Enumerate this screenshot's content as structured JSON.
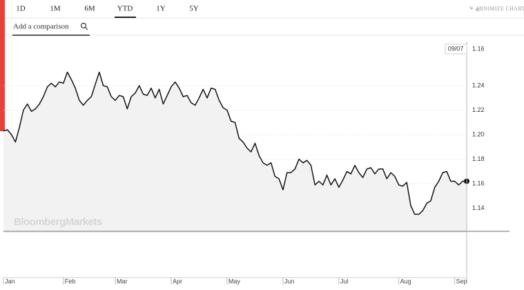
{
  "tabs": [
    "1D",
    "1M",
    "6M",
    "YTD",
    "1Y",
    "5Y"
  ],
  "active_tab": 3,
  "minimize": "MINIMIZE CHART",
  "comparison_placeholder": "Add a comparison",
  "chart_data": {
    "type": "line",
    "watermark": "BloombergMarkets",
    "color": "#111111",
    "crosshair": {
      "date": "09/07",
      "label": "1.16"
    },
    "categories": [
      "Jan",
      null,
      null,
      null,
      null,
      null,
      null,
      null,
      null,
      null,
      null,
      null,
      null,
      null,
      null,
      "Feb",
      null,
      null,
      null,
      null,
      null,
      null,
      null,
      null,
      null,
      null,
      null,
      null,
      "Mar",
      null,
      null,
      null,
      null,
      null,
      null,
      null,
      null,
      null,
      null,
      null,
      null,
      null,
      "Apr",
      null,
      null,
      null,
      null,
      null,
      null,
      null,
      null,
      null,
      null,
      null,
      null,
      null,
      "May",
      null,
      null,
      null,
      null,
      null,
      null,
      null,
      null,
      null,
      null,
      null,
      null,
      null,
      "Jun",
      null,
      null,
      null,
      null,
      null,
      null,
      null,
      null,
      null,
      null,
      null,
      null,
      null,
      "Jul",
      null,
      null,
      null,
      null,
      null,
      null,
      null,
      null,
      null,
      null,
      null,
      null,
      null,
      null,
      "Aug",
      null,
      null,
      null,
      null,
      null,
      null,
      null,
      null,
      null,
      null,
      null,
      null,
      null,
      "Sep",
      null,
      null,
      null
    ],
    "values": [
      1.203,
      1.204,
      1.2,
      1.194,
      1.206,
      1.22,
      1.225,
      1.219,
      1.221,
      1.225,
      1.231,
      1.239,
      1.242,
      1.239,
      1.243,
      1.242,
      1.251,
      1.245,
      1.238,
      1.228,
      1.224,
      1.228,
      1.231,
      1.241,
      1.251,
      1.24,
      1.239,
      1.231,
      1.228,
      1.232,
      1.231,
      1.221,
      1.231,
      1.234,
      1.24,
      1.233,
      1.232,
      1.238,
      1.23,
      1.237,
      1.225,
      1.232,
      1.239,
      1.243,
      1.238,
      1.231,
      1.232,
      1.226,
      1.224,
      1.23,
      1.237,
      1.23,
      1.238,
      1.237,
      1.228,
      1.222,
      1.22,
      1.211,
      1.21,
      1.197,
      1.194,
      1.189,
      1.186,
      1.193,
      1.183,
      1.177,
      1.175,
      1.177,
      1.166,
      1.164,
      1.155,
      1.169,
      1.169,
      1.172,
      1.18,
      1.177,
      1.179,
      1.175,
      1.159,
      1.162,
      1.159,
      1.167,
      1.159,
      1.164,
      1.157,
      1.163,
      1.17,
      1.168,
      1.175,
      1.169,
      1.165,
      1.172,
      1.173,
      1.168,
      1.172,
      1.172,
      1.164,
      1.169,
      1.166,
      1.159,
      1.158,
      1.161,
      1.142,
      1.135,
      1.135,
      1.138,
      1.144,
      1.146,
      1.157,
      1.162,
      1.169,
      1.17,
      1.162,
      1.162,
      1.159,
      1.162,
      1.162
    ],
    "ylim": [
      1.12,
      1.28
    ],
    "yticks": [
      1.14,
      1.16,
      1.18,
      {
        "value": 1.2,
        "label": "1.20"
      },
      1.22,
      1.24
    ],
    "grid": true
  }
}
